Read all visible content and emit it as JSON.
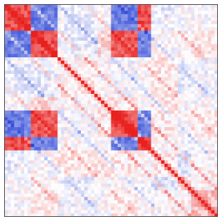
{
  "chart_data": {
    "type": "heatmap",
    "title": "",
    "xlabel": "",
    "ylabel": "",
    "grid": false,
    "legend": "none",
    "colors": {
      "negative": "#2c46d6",
      "neutral": "#ffffff",
      "positive": "#e8201e"
    },
    "value_range": [
      -1,
      1
    ],
    "n": 64,
    "block_edges": [
      0,
      8,
      16,
      28,
      32,
      40,
      44,
      52,
      56,
      64
    ],
    "block_matrix": [
      [
        0.8,
        -0.7,
        -0.1,
        0.0,
        -0.7,
        0.8,
        -0.1,
        0.0,
        0.0
      ],
      [
        -0.7,
        0.8,
        -0.1,
        0.2,
        0.75,
        -0.7,
        0.0,
        0.05,
        0.1
      ],
      [
        -0.1,
        -0.1,
        0.05,
        0.0,
        -0.05,
        0.0,
        0.1,
        -0.1,
        -0.05
      ],
      [
        0.0,
        0.2,
        0.0,
        0.05,
        0.1,
        -0.05,
        0.1,
        0.0,
        0.0
      ],
      [
        -0.7,
        0.75,
        -0.05,
        0.1,
        0.8,
        -0.7,
        0.1,
        0.0,
        0.1
      ],
      [
        0.8,
        -0.7,
        0.0,
        -0.05,
        -0.7,
        0.8,
        0.0,
        -0.05,
        0.0
      ],
      [
        -0.1,
        0.0,
        0.1,
        0.1,
        0.1,
        0.0,
        0.1,
        -0.15,
        0.05
      ],
      [
        0.0,
        0.05,
        -0.1,
        0.0,
        0.0,
        -0.05,
        -0.15,
        0.2,
        0.05
      ],
      [
        0.0,
        0.1,
        -0.05,
        0.0,
        0.1,
        0.0,
        0.05,
        0.05,
        0.3
      ]
    ],
    "off_diagonals": [
      {
        "offset": 8,
        "value": 0.35
      },
      {
        "offset": 16,
        "value": -0.3
      },
      {
        "offset": 24,
        "value": 0.25
      },
      {
        "offset": 34,
        "value": -0.25
      },
      {
        "offset": 44,
        "value": 0.2
      }
    ],
    "diagonal_value": 1.0
  }
}
